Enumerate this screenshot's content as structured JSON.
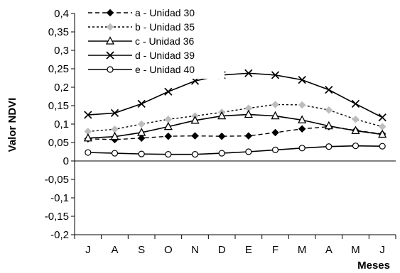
{
  "chart_data": {
    "type": "line",
    "categories": [
      "J",
      "A",
      "S",
      "O",
      "N",
      "D",
      "E",
      "F",
      "M",
      "A",
      "M",
      "J"
    ],
    "xlabel": "Meses",
    "ylabel": "Valor NDVI",
    "ylim": [
      -0.2,
      0.4
    ],
    "yticks": [
      "0,4",
      "0,35",
      "0,3",
      "0,25",
      "0,2",
      "0,15",
      "0,1",
      "0,05",
      "0",
      "-0,05",
      "-0,1",
      "-0,15",
      "-0,2"
    ],
    "grid": false,
    "legend": "top-left",
    "series": [
      {
        "name": "a - Unidad 30",
        "marker": "diamond-filled",
        "line": "dashed",
        "color": "#000000",
        "values": [
          0.06,
          0.058,
          0.062,
          0.067,
          0.068,
          0.067,
          0.068,
          0.077,
          0.087,
          0.093,
          0.083,
          0.073
        ]
      },
      {
        "name": "b - Unidad 35",
        "marker": "diamond-gray",
        "line": "dotted",
        "color": "#000000",
        "values": [
          0.08,
          0.086,
          0.1,
          0.113,
          0.122,
          0.132,
          0.143,
          0.153,
          0.152,
          0.138,
          0.113,
          0.093
        ]
      },
      {
        "name": "c - Unidad 36",
        "marker": "triangle-open",
        "line": "solid",
        "color": "#000000",
        "values": [
          0.062,
          0.066,
          0.077,
          0.093,
          0.11,
          0.122,
          0.126,
          0.122,
          0.111,
          0.095,
          0.082,
          0.072
        ]
      },
      {
        "name": "d - Unidad 39",
        "marker": "cross",
        "line": "solid",
        "color": "#000000",
        "values": [
          0.125,
          0.13,
          0.155,
          0.188,
          0.217,
          0.233,
          0.238,
          0.233,
          0.22,
          0.193,
          0.155,
          0.118
        ]
      },
      {
        "name": "e - Unidad 40",
        "marker": "circle-open",
        "line": "solid",
        "color": "#000000",
        "values": [
          0.023,
          0.021,
          0.019,
          0.018,
          0.018,
          0.021,
          0.025,
          0.03,
          0.035,
          0.039,
          0.041,
          0.04
        ]
      }
    ]
  }
}
